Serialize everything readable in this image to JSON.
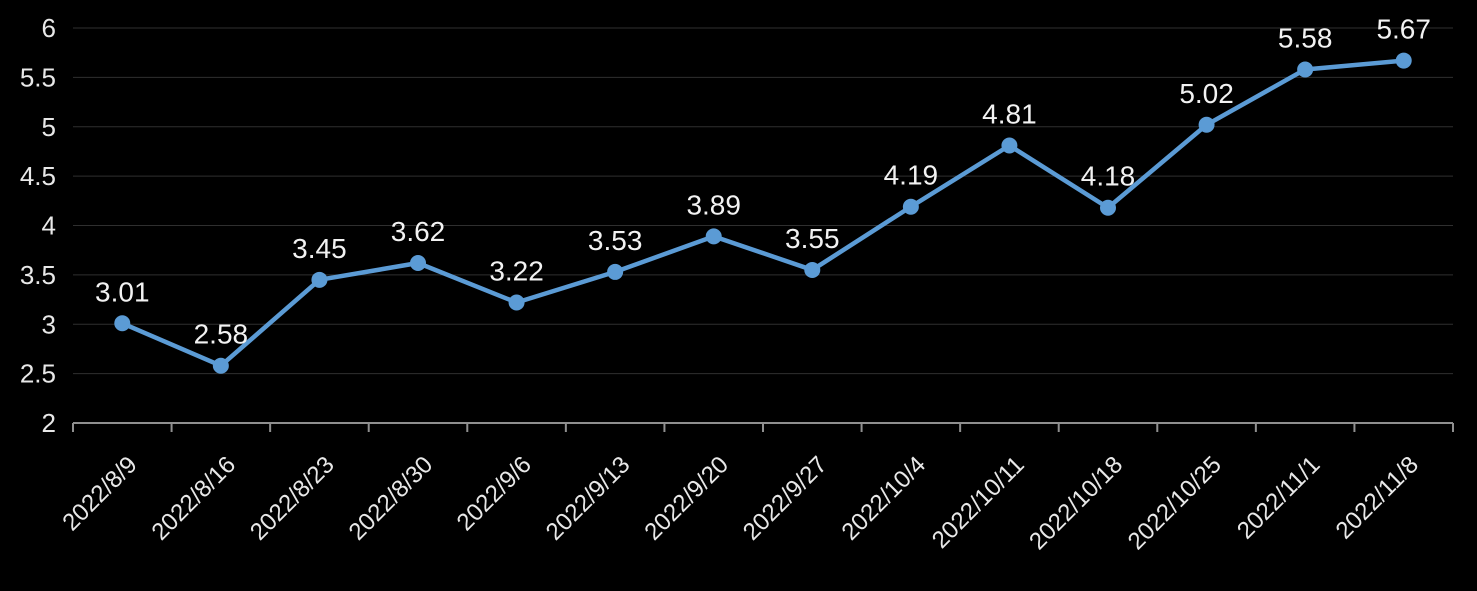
{
  "chart_data": {
    "type": "line",
    "title": "",
    "categories": [
      "2022/8/9",
      "2022/8/16",
      "2022/8/23",
      "2022/8/30",
      "2022/9/6",
      "2022/9/13",
      "2022/9/20",
      "2022/9/27",
      "2022/10/4",
      "2022/10/11",
      "2022/10/18",
      "2022/10/25",
      "2022/11/1",
      "2022/11/8"
    ],
    "series": [
      {
        "name": "series-1",
        "values": [
          3.01,
          2.58,
          3.45,
          3.62,
          3.22,
          3.53,
          3.89,
          3.55,
          4.19,
          4.81,
          4.18,
          5.02,
          5.58,
          5.67
        ]
      }
    ],
    "data_labels": [
      "3.01",
      "2.58",
      "3.45",
      "3.62",
      "3.22",
      "3.53",
      "3.89",
      "3.55",
      "4.19",
      "4.81",
      "4.18",
      "5.02",
      "5.58",
      "5.67"
    ],
    "y_tick_labels": [
      "2",
      "2.5",
      "3",
      "3.5",
      "4",
      "4.5",
      "5",
      "5.5",
      "6"
    ],
    "y_ticks": [
      2,
      2.5,
      3,
      3.5,
      4,
      4.5,
      5,
      5.5,
      6
    ],
    "ylim": [
      2,
      6
    ],
    "xlabel": "",
    "ylabel": "",
    "legend_position": "none",
    "grid": "horizontal",
    "colors": {
      "background": "#000000",
      "line": "#5B9BD5",
      "marker": "#5B9BD5",
      "gridline": "#2f2f2f",
      "axis_line": "#8f8f8f",
      "data_label": "#f2f2f2",
      "tick_label": "#e8e8e8"
    }
  }
}
